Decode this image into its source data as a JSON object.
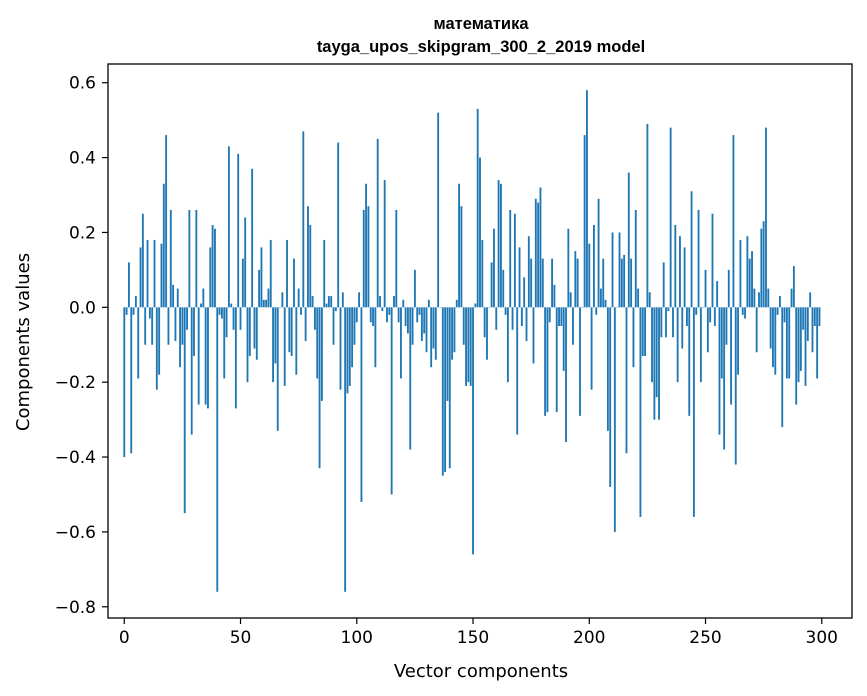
{
  "chart_data": {
    "type": "bar",
    "title": "математика",
    "subtitle": "tayga_upos_skipgram_300_2_2019 model",
    "xlabel": "Vector components",
    "ylabel": "Components values",
    "xlim": [
      -7,
      313
    ],
    "ylim": [
      -0.83,
      0.65
    ],
    "xticks": [
      0,
      50,
      100,
      150,
      200,
      250,
      300
    ],
    "xtick_labels": [
      "0",
      "50",
      "100",
      "150",
      "200",
      "250",
      "300"
    ],
    "yticks": [
      -0.8,
      -0.6,
      -0.4,
      -0.2,
      0.0,
      0.2,
      0.4,
      0.6
    ],
    "ytick_labels": [
      "−0.8",
      "−0.6",
      "−0.4",
      "−0.2",
      "0.0",
      "0.2",
      "0.4",
      "0.6"
    ],
    "bar_color": "#1f77b4",
    "grid": false,
    "values": [
      -0.4,
      -0.02,
      0.12,
      -0.39,
      -0.02,
      0.03,
      -0.19,
      0.16,
      0.25,
      -0.1,
      0.18,
      -0.03,
      -0.1,
      0.18,
      -0.22,
      -0.18,
      0.17,
      0.33,
      0.46,
      -0.1,
      0.26,
      0.06,
      -0.09,
      0.05,
      -0.16,
      -0.1,
      -0.55,
      -0.06,
      0.26,
      -0.34,
      -0.13,
      0.26,
      -0.26,
      0.01,
      0.05,
      -0.26,
      -0.27,
      0.16,
      0.22,
      0.21,
      -0.76,
      -0.02,
      -0.03,
      -0.19,
      -0.08,
      0.43,
      0.01,
      -0.06,
      -0.27,
      0.41,
      -0.06,
      0.13,
      0.24,
      -0.2,
      -0.13,
      0.37,
      -0.11,
      -0.14,
      0.1,
      0.16,
      0.02,
      0.02,
      0.05,
      0.18,
      -0.2,
      -0.15,
      -0.33,
      0.0,
      0.04,
      -0.21,
      0.18,
      -0.12,
      -0.13,
      0.13,
      -0.18,
      0.05,
      -0.02,
      0.47,
      -0.09,
      0.27,
      0.22,
      0.03,
      -0.06,
      -0.19,
      -0.43,
      -0.25,
      0.18,
      0.01,
      0.03,
      0.03,
      -0.1,
      -0.01,
      0.44,
      -0.22,
      0.04,
      -0.76,
      -0.23,
      -0.21,
      -0.16,
      -0.1,
      -0.04,
      0.04,
      -0.52,
      0.26,
      0.33,
      0.27,
      -0.04,
      -0.05,
      -0.16,
      0.45,
      0.03,
      -0.01,
      0.34,
      -0.04,
      -0.02,
      -0.5,
      0.03,
      0.26,
      -0.04,
      -0.19,
      0.02,
      -0.05,
      -0.07,
      -0.38,
      -0.1,
      0.1,
      -0.04,
      -0.02,
      -0.09,
      -0.07,
      -0.12,
      0.02,
      -0.16,
      -0.11,
      -0.14,
      0.52,
      0.0,
      -0.45,
      -0.44,
      -0.25,
      -0.43,
      -0.14,
      -0.12,
      0.02,
      0.33,
      0.27,
      -0.1,
      -0.21,
      -0.2,
      -0.21,
      -0.66,
      0.01,
      0.53,
      0.4,
      0.18,
      -0.08,
      -0.14,
      0.0,
      0.12,
      0.21,
      -0.06,
      0.34,
      0.33,
      0.1,
      -0.02,
      -0.2,
      0.26,
      -0.06,
      0.25,
      -0.34,
      0.16,
      -0.05,
      0.08,
      -0.09,
      0.19,
      0.13,
      -0.15,
      0.29,
      0.28,
      0.32,
      0.13,
      -0.29,
      -0.28,
      -0.04,
      0.13,
      0.06,
      -0.28,
      -0.05,
      -0.05,
      -0.17,
      -0.36,
      0.21,
      0.04,
      -0.1,
      0.15,
      0.13,
      -0.29,
      0.0,
      0.46,
      0.58,
      0.17,
      -0.22,
      0.22,
      -0.02,
      0.29,
      0.05,
      0.13,
      0.02,
      -0.33,
      -0.48,
      0.2,
      -0.6,
      0.0,
      0.2,
      0.13,
      0.14,
      -0.39,
      0.36,
      0.13,
      -0.16,
      0.26,
      0.05,
      -0.56,
      -0.13,
      -0.13,
      0.49,
      0.04,
      -0.2,
      -0.3,
      -0.24,
      -0.3,
      -0.08,
      0.12,
      -0.08,
      -0.01,
      0.48,
      -0.08,
      0.22,
      -0.2,
      0.19,
      -0.11,
      0.16,
      -0.05,
      -0.29,
      0.31,
      -0.56,
      -0.02,
      0.26,
      -0.2,
      0.0,
      0.1,
      -0.12,
      -0.04,
      0.25,
      -0.05,
      0.07,
      -0.34,
      -0.19,
      -0.38,
      -0.1,
      0.1,
      -0.26,
      0.46,
      -0.42,
      -0.18,
      0.18,
      -0.02,
      -0.03,
      0.19,
      0.13,
      0.15,
      0.05,
      -0.12,
      0.04,
      0.21,
      0.23,
      0.48,
      0.05,
      -0.11,
      -0.16,
      -0.18,
      -0.02,
      0.03,
      -0.32,
      -0.04,
      -0.19,
      -0.19,
      0.05,
      0.11,
      -0.26,
      -0.2,
      -0.17,
      -0.06,
      -0.21,
      -0.09,
      0.04,
      -0.12,
      -0.05,
      -0.19,
      -0.05
    ]
  }
}
